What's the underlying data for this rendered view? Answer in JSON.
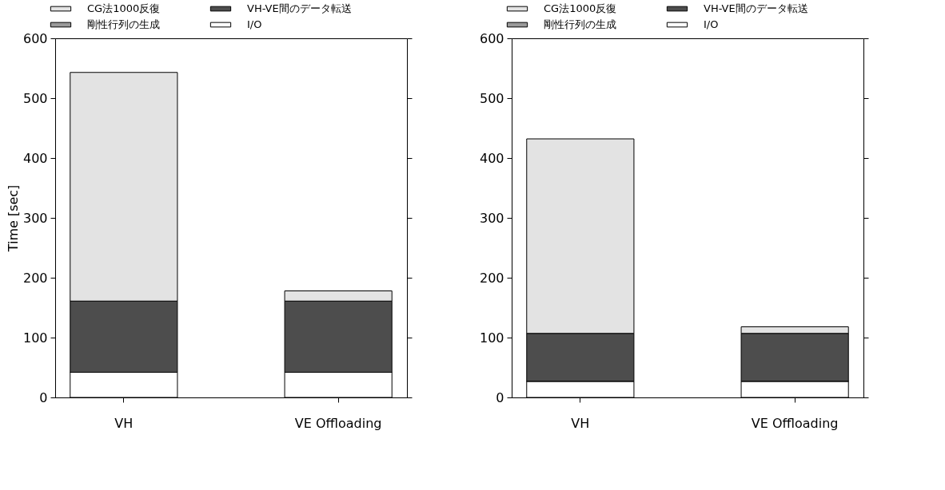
{
  "chart_data": [
    {
      "type": "bar",
      "stacked": true,
      "ylabel": "Time [sec]",
      "categories": [
        "VH",
        "VE Offloading"
      ],
      "ylim": [
        0,
        600
      ],
      "yticks": [
        0,
        100,
        200,
        300,
        400,
        500,
        600
      ],
      "legend": "top",
      "series": [
        {
          "name": "I/O",
          "color": "#ffffff",
          "values": [
            42,
            42
          ]
        },
        {
          "name": "剛性行列の生成",
          "color": "#9a9a9a",
          "values": [
            0,
            0
          ]
        },
        {
          "name": "VH-VE間のデータ転送",
          "color": "#4d4d4d",
          "values": [
            119,
            119
          ]
        },
        {
          "name": "CG法1000反復",
          "color": "#e3e3e3",
          "values": [
            382,
            17
          ]
        }
      ]
    },
    {
      "type": "bar",
      "stacked": true,
      "categories": [
        "VH",
        "VE Offloading"
      ],
      "ylim": [
        0,
        600
      ],
      "yticks": [
        0,
        100,
        200,
        300,
        400,
        500,
        600
      ],
      "legend": "top",
      "series": [
        {
          "name": "I/O",
          "color": "#ffffff",
          "values": [
            27,
            27
          ]
        },
        {
          "name": "剛性行列の生成",
          "color": "#9a9a9a",
          "values": [
            0,
            0
          ]
        },
        {
          "name": "VH-VE間のデータ転送",
          "color": "#4d4d4d",
          "values": [
            80,
            80
          ]
        },
        {
          "name": "CG法1000反復",
          "color": "#e3e3e3",
          "values": [
            325,
            11
          ]
        }
      ]
    }
  ]
}
